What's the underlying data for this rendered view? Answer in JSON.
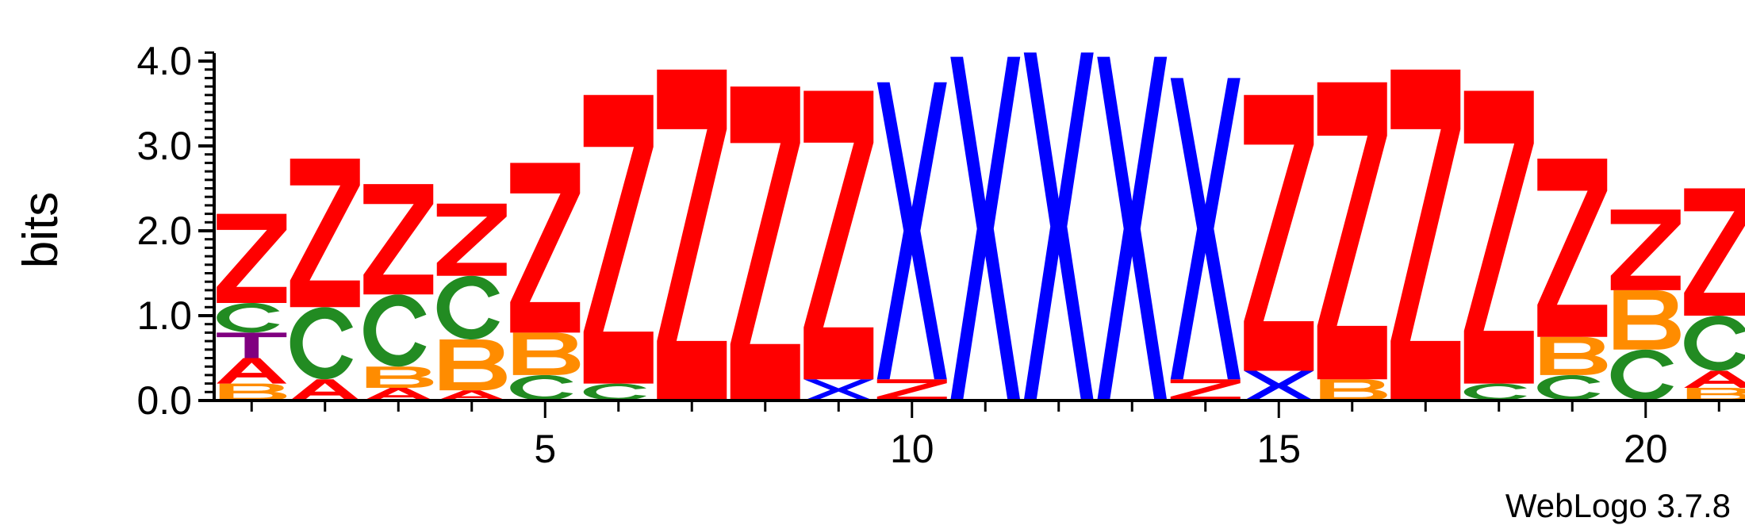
{
  "chart_data": {
    "type": "sequence_logo",
    "ylabel": "bits",
    "ylim": [
      0,
      4.0
    ],
    "y_ticks": [
      "0.0",
      "1.0",
      "2.0",
      "3.0",
      "4.0"
    ],
    "y_tick_values": [
      0,
      1,
      2,
      3,
      4
    ],
    "x_ticks": [
      "5",
      "10",
      "15",
      "20"
    ],
    "x_tick_values": [
      5,
      10,
      15,
      20
    ],
    "credit": "WebLogo 3.7.8",
    "colors": {
      "Z": "#ff0000",
      "A": "#ff0000",
      "X": "#0000ff",
      "C": "#228b22",
      "B": "#ff8c00",
      "T": "#800080"
    },
    "positions": [
      {
        "pos": 1,
        "stack": [
          {
            "letter": "B",
            "bits": 0.2
          },
          {
            "letter": "A",
            "bits": 0.3
          },
          {
            "letter": "T",
            "bits": 0.3
          },
          {
            "letter": "C",
            "bits": 0.35
          },
          {
            "letter": "Z",
            "bits": 1.05
          }
        ]
      },
      {
        "pos": 2,
        "stack": [
          {
            "letter": "A",
            "bits": 0.25
          },
          {
            "letter": "C",
            "bits": 0.85
          },
          {
            "letter": "Z",
            "bits": 1.75
          }
        ]
      },
      {
        "pos": 3,
        "stack": [
          {
            "letter": "A",
            "bits": 0.15
          },
          {
            "letter": "B",
            "bits": 0.25
          },
          {
            "letter": "C",
            "bits": 0.85
          },
          {
            "letter": "Z",
            "bits": 1.3
          }
        ]
      },
      {
        "pos": 4,
        "stack": [
          {
            "letter": "A",
            "bits": 0.12
          },
          {
            "letter": "B",
            "bits": 0.6
          },
          {
            "letter": "C",
            "bits": 0.75
          },
          {
            "letter": "Z",
            "bits": 0.85
          }
        ]
      },
      {
        "pos": 5,
        "stack": [
          {
            "letter": "C",
            "bits": 0.3
          },
          {
            "letter": "B",
            "bits": 0.5
          },
          {
            "letter": "Z",
            "bits": 2.0
          }
        ]
      },
      {
        "pos": 6,
        "stack": [
          {
            "letter": "C",
            "bits": 0.2
          },
          {
            "letter": "Z",
            "bits": 3.4
          }
        ]
      },
      {
        "pos": 7,
        "stack": [
          {
            "letter": "Z",
            "bits": 3.9
          }
        ]
      },
      {
        "pos": 8,
        "stack": [
          {
            "letter": "Z",
            "bits": 3.7
          }
        ]
      },
      {
        "pos": 9,
        "stack": [
          {
            "letter": "X",
            "bits": 0.25
          },
          {
            "letter": "Z",
            "bits": 3.4
          }
        ]
      },
      {
        "pos": 10,
        "stack": [
          {
            "letter": "Z",
            "bits": 0.25
          },
          {
            "letter": "X",
            "bits": 3.5
          }
        ]
      },
      {
        "pos": 11,
        "stack": [
          {
            "letter": "X",
            "bits": 4.05
          }
        ]
      },
      {
        "pos": 12,
        "stack": [
          {
            "letter": "X",
            "bits": 4.1
          }
        ]
      },
      {
        "pos": 13,
        "stack": [
          {
            "letter": "X",
            "bits": 4.05
          }
        ]
      },
      {
        "pos": 14,
        "stack": [
          {
            "letter": "Z",
            "bits": 0.25
          },
          {
            "letter": "X",
            "bits": 3.55
          }
        ]
      },
      {
        "pos": 15,
        "stack": [
          {
            "letter": "X",
            "bits": 0.35
          },
          {
            "letter": "Z",
            "bits": 3.25
          }
        ]
      },
      {
        "pos": 16,
        "stack": [
          {
            "letter": "B",
            "bits": 0.25
          },
          {
            "letter": "Z",
            "bits": 3.5
          }
        ]
      },
      {
        "pos": 17,
        "stack": [
          {
            "letter": "Z",
            "bits": 3.9
          }
        ]
      },
      {
        "pos": 18,
        "stack": [
          {
            "letter": "C",
            "bits": 0.2
          },
          {
            "letter": "Z",
            "bits": 3.45
          }
        ]
      },
      {
        "pos": 19,
        "stack": [
          {
            "letter": "C",
            "bits": 0.3
          },
          {
            "letter": "B",
            "bits": 0.45
          },
          {
            "letter": "Z",
            "bits": 2.1
          }
        ]
      },
      {
        "pos": 20,
        "stack": [
          {
            "letter": "C",
            "bits": 0.6
          },
          {
            "letter": "B",
            "bits": 0.7
          },
          {
            "letter": "Z",
            "bits": 0.95
          }
        ]
      },
      {
        "pos": 21,
        "stack": [
          {
            "letter": "B",
            "bits": 0.15
          },
          {
            "letter": "A",
            "bits": 0.2
          },
          {
            "letter": "C",
            "bits": 0.65
          },
          {
            "letter": "Z",
            "bits": 1.5
          }
        ]
      }
    ]
  }
}
